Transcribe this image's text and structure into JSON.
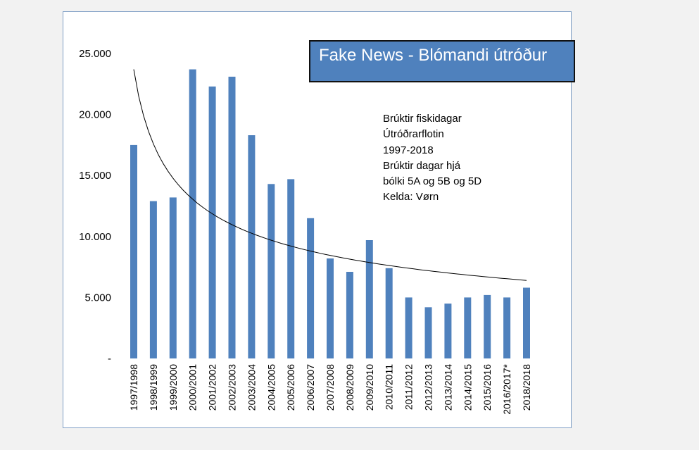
{
  "chart_data": {
    "type": "bar",
    "title": "Fake News - Blómandi útróður",
    "annotation": [
      "Brúktir fiskidagar",
      "Útróðrarflotin",
      "1997-2018",
      "Brúktir dagar hjá",
      "bólki 5A og 5B og 5D",
      "Kelda: Vørn"
    ],
    "categories": [
      "1997/1998",
      "1998/1999",
      "1999/2000",
      "2000/2001",
      "2001/2002",
      "2002/2003",
      "2003/2004",
      "2004/2005",
      "2005/2006",
      "2006/2007",
      "2007/2008",
      "2008/2009",
      "2009/2010",
      "2010/2011",
      "2011/2012",
      "2012/2013",
      "2013/2014",
      "2014/2015",
      "2015/2016",
      "2016/2017*",
      "2018/2018"
    ],
    "values": [
      17500,
      12900,
      13200,
      23700,
      22300,
      23100,
      18300,
      14300,
      14700,
      11500,
      8200,
      7100,
      9700,
      7400,
      5000,
      4200,
      4500,
      5000,
      5200,
      5000,
      5800
    ],
    "y_ticks": [
      "-",
      "5.000",
      "10.000",
      "15.000",
      "20.000",
      "25.000"
    ],
    "y_tick_values": [
      0,
      5000,
      10000,
      15000,
      20000,
      25000
    ],
    "ylim": [
      0,
      25000
    ],
    "trendline": {
      "type": "power",
      "start": 23700,
      "end": 6400
    },
    "bar_color": "#4f81bd",
    "grid": false,
    "legend": "none"
  }
}
